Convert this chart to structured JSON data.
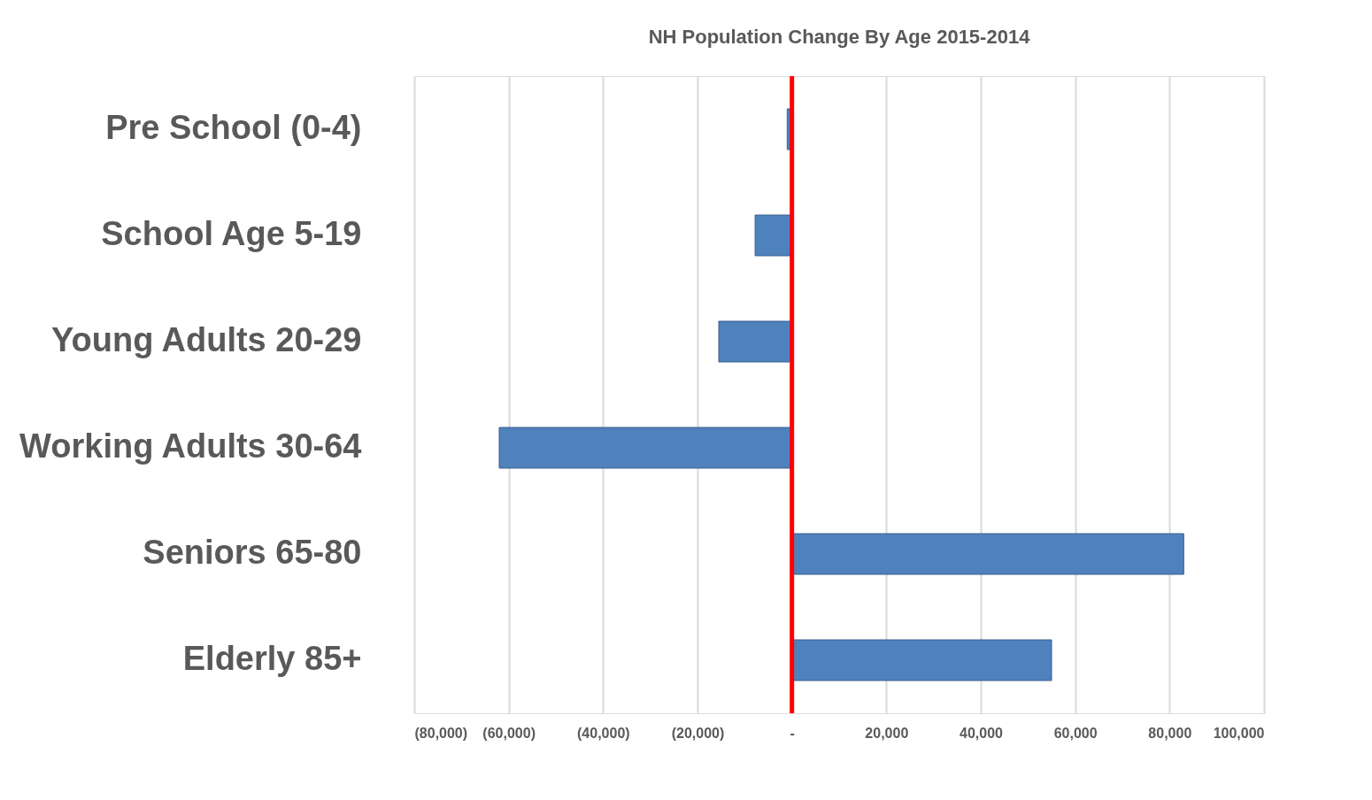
{
  "chart_data": {
    "type": "bar",
    "orientation": "horizontal",
    "title": "NH Population Change By Age 2015-2014",
    "categories": [
      "Pre School (0-4)",
      "School Age 5-19",
      "Young Adults 20-29",
      "Working Adults 30-64",
      "Seniors 65-80",
      "Elderly 85+"
    ],
    "values": [
      -1000,
      -7800,
      -15500,
      -62000,
      83000,
      55000
    ],
    "color": "#4f81bd",
    "xlim": [
      -80000,
      100000
    ],
    "xticks": [
      {
        "value": -80000,
        "label": "(80,000)"
      },
      {
        "value": -60000,
        "label": "(60,000)"
      },
      {
        "value": -40000,
        "label": "(40,000)"
      },
      {
        "value": -20000,
        "label": "(20,000)"
      },
      {
        "value": 0,
        "label": "-"
      },
      {
        "value": 20000,
        "label": "20,000"
      },
      {
        "value": 40000,
        "label": "40,000"
      },
      {
        "value": 60000,
        "label": "60,000"
      },
      {
        "value": 80000,
        "label": "80,000"
      },
      {
        "value": 100000,
        "label": "100,000"
      }
    ],
    "grid": "x",
    "ref_lines": [
      {
        "axis": "x",
        "value": 0,
        "color": "#ff0000"
      }
    ]
  }
}
